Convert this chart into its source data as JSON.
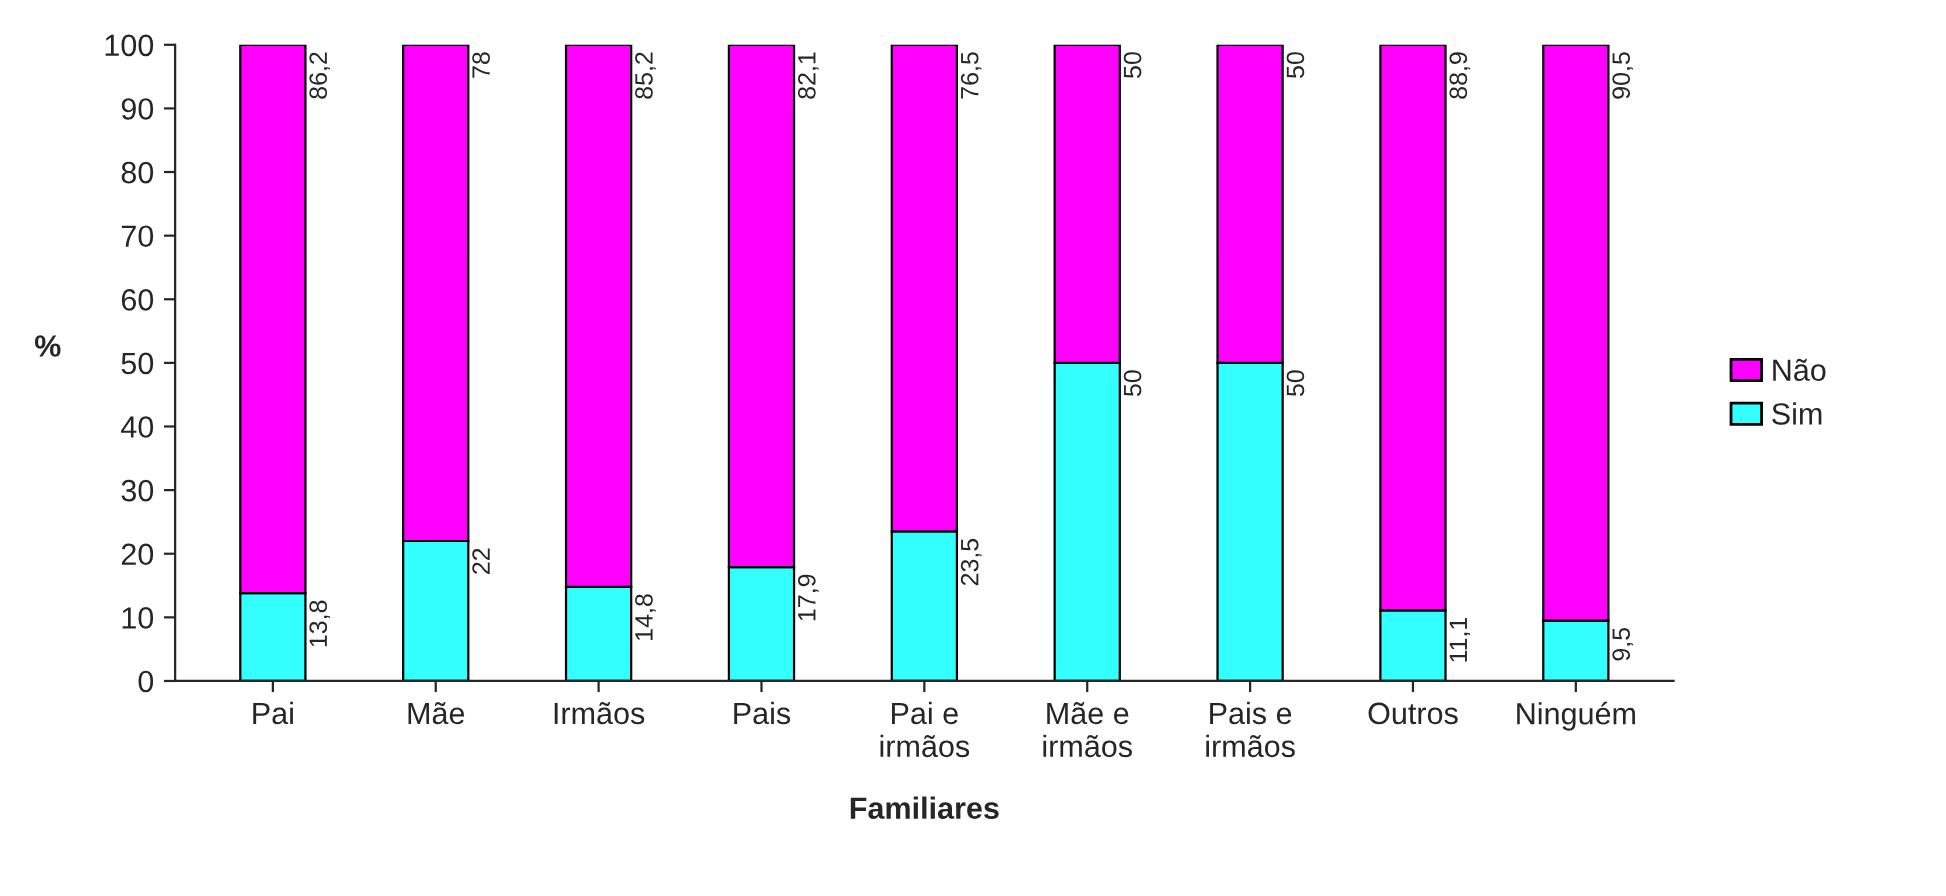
{
  "chart_data": {
    "type": "bar",
    "stacked": true,
    "xlabel": "Familiares",
    "ylabel": "%",
    "categories": [
      "Pai",
      "Mãe",
      "Irmãos",
      "Pais",
      "Pai e\nirmãos",
      "Mãe e\nirmãos",
      "Pais e\nirmãos",
      "Outros",
      "Ninguém"
    ],
    "series": [
      {
        "name": "Sim",
        "color": "#33ffff",
        "values": [
          13.8,
          22,
          14.8,
          17.9,
          23.5,
          50,
          50,
          11.1,
          9.5
        ],
        "value_labels": [
          "13,8",
          "22",
          "14,8",
          "17,9",
          "23,5",
          "50",
          "50",
          "11,1",
          "9,5"
        ]
      },
      {
        "name": "Não",
        "color": "#ff00ff",
        "values": [
          86.2,
          78,
          85.2,
          82.1,
          76.5,
          50,
          50,
          88.9,
          90.5
        ],
        "value_labels": [
          "86,2",
          "78",
          "85,2",
          "82,1",
          "76,5",
          "50",
          "50",
          "88,9",
          "90,5"
        ]
      }
    ],
    "ylim": [
      0,
      100
    ],
    "yticks": [
      0,
      10,
      20,
      30,
      40,
      50,
      60,
      70,
      80,
      90,
      100
    ],
    "grid": false,
    "legend": "right"
  }
}
